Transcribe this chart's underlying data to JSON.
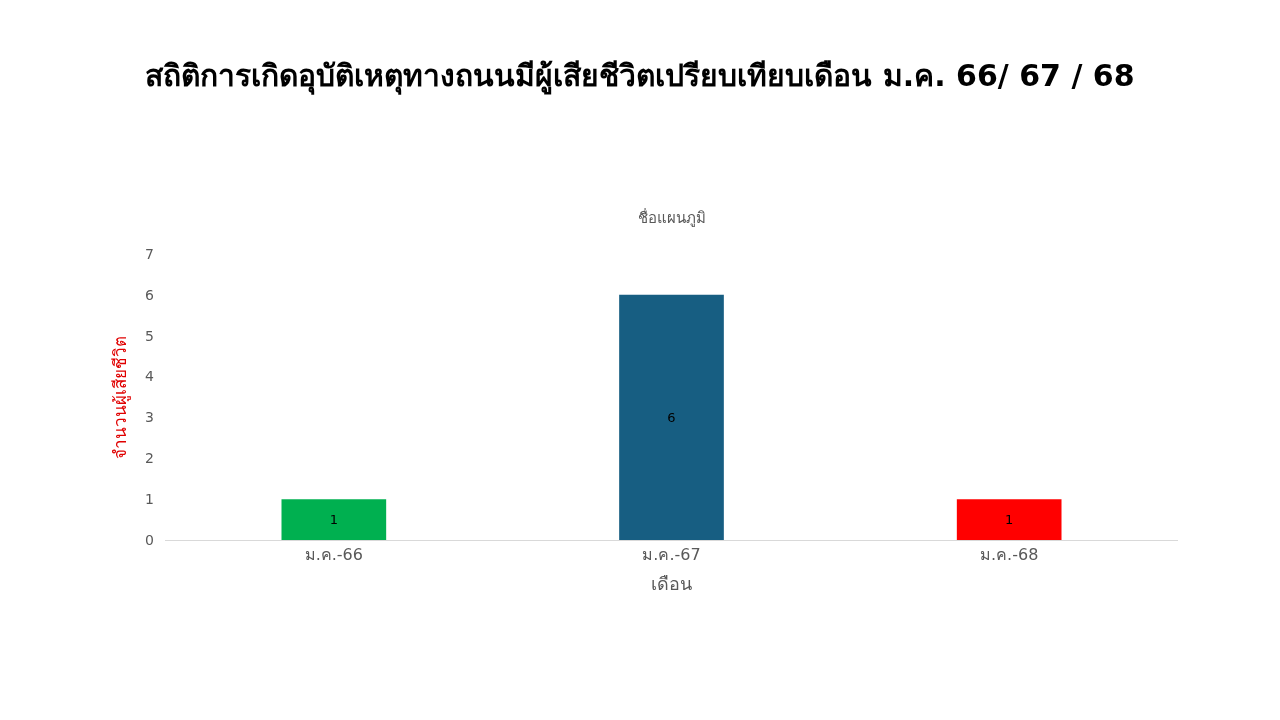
{
  "chart_data": {
    "type": "bar",
    "title": "สถิติการเกิดอุบัติเหตุทางถนนมีผู้เสียชีวิตเปรียบเทียบเดือน ม.ค. 66/ 67 / 68",
    "subtitle": "ชื่อแผนภูมิ",
    "xlabel": "เดือน",
    "ylabel": "จำนวนผู้เสียชีวิต",
    "categories": [
      "ม.ค.-66",
      "ม.ค.-67",
      "ม.ค.-68"
    ],
    "values": [
      1,
      6,
      1
    ],
    "colors": [
      "#00b050",
      "#175e82",
      "#ff0000"
    ],
    "ylim": [
      0,
      7
    ],
    "yticks": [
      0,
      1,
      2,
      3,
      4,
      5,
      6,
      7
    ],
    "grid": false,
    "data_labels": true
  }
}
